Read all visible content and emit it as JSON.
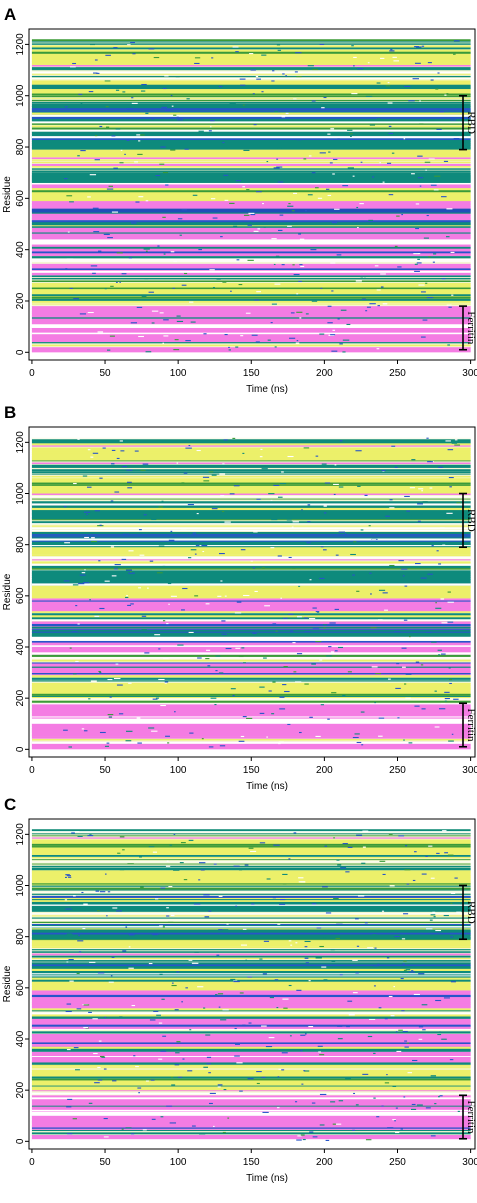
{
  "chart_data": [
    {
      "panel": "A",
      "type": "heatmap",
      "xlabel": "Time (ns)",
      "ylabel": "Residue",
      "xlim": [
        -2,
        303
      ],
      "ylim": [
        -30,
        1260
      ],
      "x_ticks": [
        0,
        50,
        100,
        150,
        200,
        250,
        300
      ],
      "y_ticks": [
        0,
        200,
        400,
        600,
        800,
        1000,
        1200
      ],
      "residue_range": [
        0,
        1220
      ],
      "time_range": [
        0,
        300
      ],
      "domains": [
        {
          "label": "RBD",
          "start": 790,
          "end": 1000
        },
        {
          "label": "Ferritin",
          "start": 10,
          "end": 180
        }
      ],
      "segments": [
        {
          "start": 0,
          "end": 20,
          "state": "helix"
        },
        {
          "start": 20,
          "end": 40,
          "state": "mixed"
        },
        {
          "start": 40,
          "end": 95,
          "state": "helix"
        },
        {
          "start": 95,
          "end": 110,
          "state": "coil"
        },
        {
          "start": 110,
          "end": 180,
          "state": "helix"
        },
        {
          "start": 180,
          "end": 200,
          "state": "mixed"
        },
        {
          "start": 200,
          "end": 270,
          "state": "strand"
        },
        {
          "start": 270,
          "end": 300,
          "state": "mixed"
        },
        {
          "start": 300,
          "end": 345,
          "state": "helix"
        },
        {
          "start": 345,
          "end": 375,
          "state": "mixed"
        },
        {
          "start": 375,
          "end": 420,
          "state": "helix"
        },
        {
          "start": 420,
          "end": 440,
          "state": "coil"
        },
        {
          "start": 440,
          "end": 485,
          "state": "helix"
        },
        {
          "start": 485,
          "end": 515,
          "state": "turn"
        },
        {
          "start": 515,
          "end": 545,
          "state": "helix"
        },
        {
          "start": 545,
          "end": 560,
          "state": "bridge"
        },
        {
          "start": 560,
          "end": 590,
          "state": "helix"
        },
        {
          "start": 590,
          "end": 640,
          "state": "strand"
        },
        {
          "start": 640,
          "end": 660,
          "state": "helix"
        },
        {
          "start": 660,
          "end": 700,
          "state": "turn"
        },
        {
          "start": 700,
          "end": 760,
          "state": "mixed"
        },
        {
          "start": 760,
          "end": 790,
          "state": "strand"
        },
        {
          "start": 790,
          "end": 860,
          "state": "turn"
        },
        {
          "start": 860,
          "end": 900,
          "state": "mixed"
        },
        {
          "start": 900,
          "end": 960,
          "state": "turn"
        },
        {
          "start": 960,
          "end": 1000,
          "state": "mixed"
        },
        {
          "start": 1000,
          "end": 1060,
          "state": "strand"
        },
        {
          "start": 1060,
          "end": 1120,
          "state": "mixed"
        },
        {
          "start": 1120,
          "end": 1180,
          "state": "strand"
        },
        {
          "start": 1180,
          "end": 1220,
          "state": "mixed"
        }
      ]
    },
    {
      "panel": "B",
      "type": "heatmap",
      "xlabel": "Time (ns)",
      "ylabel": "Residue",
      "xlim": [
        -2,
        303
      ],
      "ylim": [
        -30,
        1260
      ],
      "x_ticks": [
        0,
        50,
        100,
        150,
        200,
        250,
        300
      ],
      "y_ticks": [
        0,
        200,
        400,
        600,
        800,
        1000,
        1200
      ],
      "residue_range": [
        0,
        1220
      ],
      "time_range": [
        0,
        300
      ],
      "domains": [
        {
          "label": "RBD",
          "start": 790,
          "end": 1000
        },
        {
          "label": "Ferritin",
          "start": 10,
          "end": 180
        }
      ],
      "segments": [
        {
          "start": 0,
          "end": 30,
          "state": "helix"
        },
        {
          "start": 30,
          "end": 50,
          "state": "mixed"
        },
        {
          "start": 50,
          "end": 100,
          "state": "helix"
        },
        {
          "start": 100,
          "end": 120,
          "state": "coil"
        },
        {
          "start": 120,
          "end": 180,
          "state": "helix"
        },
        {
          "start": 180,
          "end": 200,
          "state": "mixed"
        },
        {
          "start": 200,
          "end": 260,
          "state": "strand"
        },
        {
          "start": 260,
          "end": 290,
          "state": "mixed"
        },
        {
          "start": 290,
          "end": 340,
          "state": "helix"
        },
        {
          "start": 340,
          "end": 370,
          "state": "mixed"
        },
        {
          "start": 370,
          "end": 425,
          "state": "helix"
        },
        {
          "start": 425,
          "end": 440,
          "state": "coil"
        },
        {
          "start": 440,
          "end": 470,
          "state": "turn"
        },
        {
          "start": 470,
          "end": 500,
          "state": "helix"
        },
        {
          "start": 500,
          "end": 540,
          "state": "mixed"
        },
        {
          "start": 540,
          "end": 590,
          "state": "helix"
        },
        {
          "start": 590,
          "end": 640,
          "state": "strand"
        },
        {
          "start": 640,
          "end": 700,
          "state": "turn"
        },
        {
          "start": 700,
          "end": 760,
          "state": "mixed"
        },
        {
          "start": 760,
          "end": 790,
          "state": "strand"
        },
        {
          "start": 790,
          "end": 850,
          "state": "turn"
        },
        {
          "start": 850,
          "end": 900,
          "state": "mixed"
        },
        {
          "start": 900,
          "end": 970,
          "state": "turn"
        },
        {
          "start": 970,
          "end": 1000,
          "state": "mixed"
        },
        {
          "start": 1000,
          "end": 1060,
          "state": "strand"
        },
        {
          "start": 1060,
          "end": 1130,
          "state": "mixed"
        },
        {
          "start": 1130,
          "end": 1180,
          "state": "strand"
        },
        {
          "start": 1180,
          "end": 1220,
          "state": "mixed"
        }
      ]
    },
    {
      "panel": "C",
      "type": "heatmap",
      "xlabel": "Time (ns)",
      "ylabel": "Residue",
      "xlim": [
        -2,
        303
      ],
      "ylim": [
        -30,
        1260
      ],
      "x_ticks": [
        0,
        50,
        100,
        150,
        200,
        250,
        300
      ],
      "y_ticks": [
        0,
        200,
        400,
        600,
        800,
        1000,
        1200
      ],
      "residue_range": [
        0,
        1220
      ],
      "time_range": [
        0,
        300
      ],
      "domains": [
        {
          "label": "RBD",
          "start": 790,
          "end": 1000
        },
        {
          "label": "Ferritin",
          "start": 10,
          "end": 180
        }
      ],
      "segments": [
        {
          "start": 0,
          "end": 25,
          "state": "helix"
        },
        {
          "start": 25,
          "end": 45,
          "state": "mixed"
        },
        {
          "start": 45,
          "end": 100,
          "state": "helix"
        },
        {
          "start": 100,
          "end": 115,
          "state": "coil"
        },
        {
          "start": 115,
          "end": 180,
          "state": "helix"
        },
        {
          "start": 180,
          "end": 200,
          "state": "mixed"
        },
        {
          "start": 200,
          "end": 280,
          "state": "strand"
        },
        {
          "start": 280,
          "end": 300,
          "state": "mixed"
        },
        {
          "start": 300,
          "end": 350,
          "state": "helix"
        },
        {
          "start": 350,
          "end": 370,
          "state": "turn"
        },
        {
          "start": 370,
          "end": 420,
          "state": "helix"
        },
        {
          "start": 420,
          "end": 440,
          "state": "mixed"
        },
        {
          "start": 440,
          "end": 480,
          "state": "helix"
        },
        {
          "start": 480,
          "end": 520,
          "state": "mixed"
        },
        {
          "start": 520,
          "end": 590,
          "state": "helix"
        },
        {
          "start": 590,
          "end": 640,
          "state": "strand"
        },
        {
          "start": 640,
          "end": 700,
          "state": "turn"
        },
        {
          "start": 700,
          "end": 760,
          "state": "mixed"
        },
        {
          "start": 760,
          "end": 790,
          "state": "strand"
        },
        {
          "start": 790,
          "end": 850,
          "state": "turn"
        },
        {
          "start": 850,
          "end": 900,
          "state": "mixed"
        },
        {
          "start": 900,
          "end": 960,
          "state": "turn"
        },
        {
          "start": 960,
          "end": 1000,
          "state": "mixed"
        },
        {
          "start": 1000,
          "end": 1060,
          "state": "strand"
        },
        {
          "start": 1060,
          "end": 1120,
          "state": "mixed"
        },
        {
          "start": 1120,
          "end": 1180,
          "state": "strand"
        },
        {
          "start": 1180,
          "end": 1220,
          "state": "mixed"
        }
      ]
    }
  ],
  "colors": {
    "helix": "#f47ce3",
    "strand": "#ecf06a",
    "turn": "#0e8a7c",
    "bridge": "#1f4fb8",
    "coil": "#ffffff",
    "mixed_light": "#f4f7d0",
    "speckle_dark": "#2755c9",
    "speckle_green": "#3a9a3a",
    "axis": "#000000"
  }
}
